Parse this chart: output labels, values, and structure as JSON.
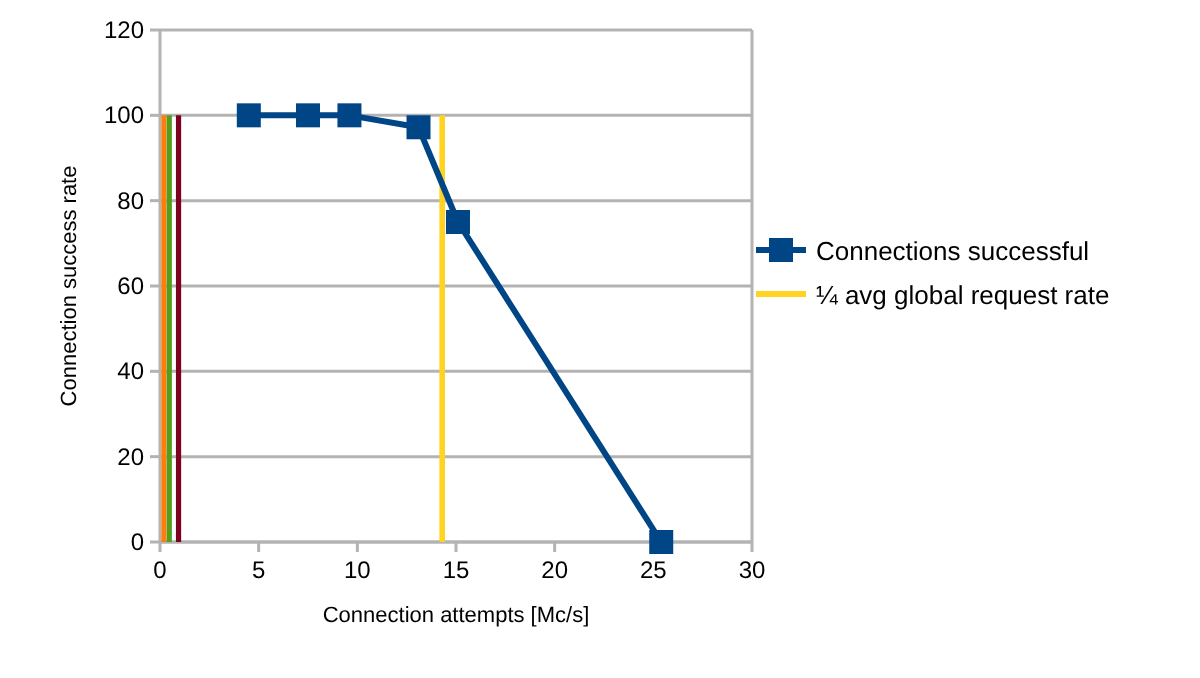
{
  "chart_data": {
    "type": "line",
    "xlabel": "Connection attempts [Mc/s]",
    "ylabel": "Connection success rate",
    "x": [
      4.5,
      7.5,
      9.6,
      13.1,
      15.1,
      25.4
    ],
    "series": [
      {
        "name": "Connections successful",
        "color": "#004586",
        "values": [
          100,
          100,
          100,
          97.2,
          75,
          0
        ],
        "marker": "square"
      },
      {
        "name": "¼ avg global request rate",
        "color": "#ffd320",
        "x": [
          14.3,
          14.3
        ],
        "values": [
          0,
          100
        ],
        "marker": "none"
      }
    ],
    "ref_lines": [
      {
        "axis": "x",
        "value": 0.2,
        "color": "#ff7f0e"
      },
      {
        "axis": "x",
        "value": 0.47,
        "color": "#579d1c"
      },
      {
        "axis": "x",
        "value": 0.94,
        "color": "#7e0021"
      }
    ],
    "xlim": [
      0,
      30
    ],
    "xticks": [
      0,
      5,
      10,
      15,
      20,
      25,
      30
    ],
    "ylim": [
      0,
      120
    ],
    "yticks": [
      0,
      20,
      40,
      60,
      80,
      100,
      120
    ],
    "grid": "y",
    "legend": "right",
    "line_style": "solid"
  }
}
